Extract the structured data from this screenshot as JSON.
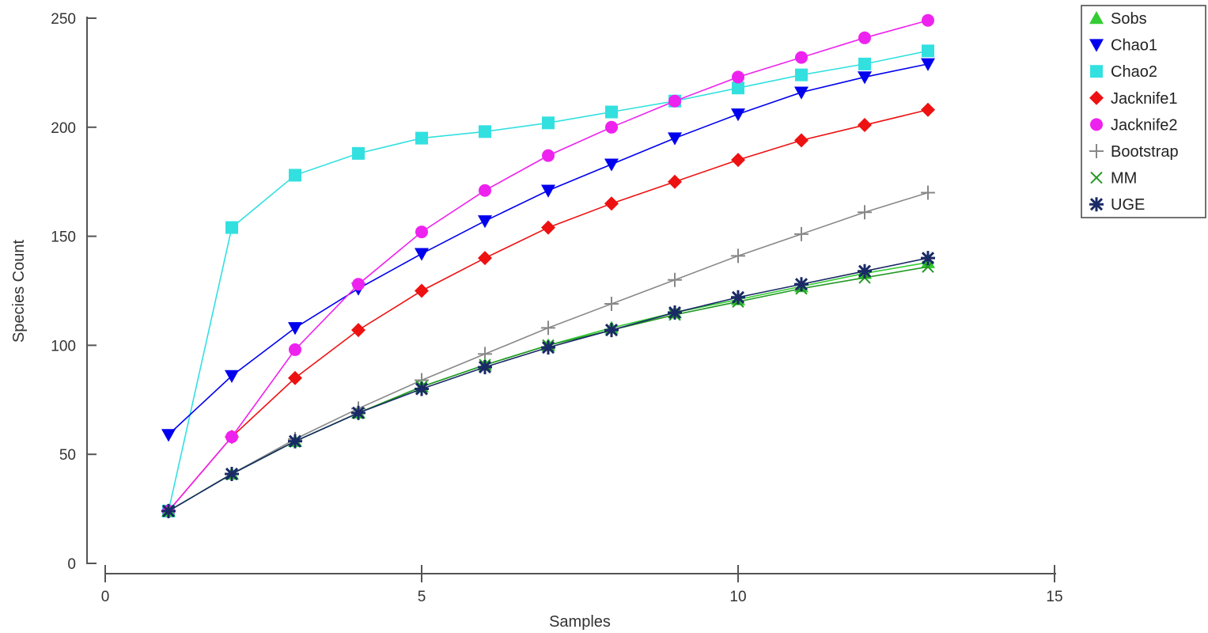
{
  "chart_data": {
    "type": "line",
    "xlabel": "Samples",
    "ylabel": "Species Count",
    "xlim": [
      0,
      15
    ],
    "ylim": [
      0,
      250
    ],
    "xticks": [
      0,
      5,
      10,
      15
    ],
    "yticks": [
      0,
      50,
      100,
      150,
      200,
      250
    ],
    "grid": false,
    "legend_position": "top-right",
    "x": [
      1,
      2,
      3,
      4,
      5,
      6,
      7,
      8,
      9,
      10,
      11,
      12,
      13
    ],
    "series": [
      {
        "name": "Sobs",
        "color": "#33cc33",
        "marker": "triangle-up",
        "values": [
          24,
          41,
          56,
          69,
          81,
          91,
          100,
          108,
          115,
          121,
          127,
          133,
          138
        ]
      },
      {
        "name": "Chao1",
        "color": "#0000ee",
        "marker": "triangle-down",
        "values": [
          59,
          86,
          108,
          126,
          142,
          157,
          171,
          183,
          195,
          206,
          216,
          223,
          229
        ]
      },
      {
        "name": "Chao2",
        "color": "#33e0e0",
        "marker": "square",
        "values": [
          24,
          154,
          178,
          188,
          195,
          198,
          202,
          207,
          212,
          218,
          224,
          229,
          235
        ]
      },
      {
        "name": "Jacknife1",
        "color": "#ee1111",
        "marker": "diamond",
        "values": [
          24,
          58,
          85,
          107,
          125,
          140,
          154,
          165,
          175,
          185,
          194,
          201,
          208
        ]
      },
      {
        "name": "Jacknife2",
        "color": "#ee22ee",
        "marker": "circle",
        "values": [
          24,
          58,
          98,
          128,
          152,
          171,
          187,
          200,
          212,
          223,
          232,
          241,
          249
        ]
      },
      {
        "name": "Bootstrap",
        "color": "#888888",
        "marker": "plus",
        "values": [
          24,
          41,
          57,
          71,
          84,
          96,
          108,
          119,
          130,
          141,
          151,
          161,
          170
        ]
      },
      {
        "name": "MM",
        "color": "#229922",
        "marker": "x",
        "values": [
          24,
          41,
          56,
          69,
          81,
          91,
          100,
          107,
          114,
          120,
          126,
          131,
          136
        ]
      },
      {
        "name": "UGE",
        "color": "#1a2a66",
        "marker": "star",
        "values": [
          24,
          41,
          56,
          69,
          80,
          90,
          99,
          107,
          115,
          122,
          128,
          134,
          140
        ]
      }
    ]
  }
}
